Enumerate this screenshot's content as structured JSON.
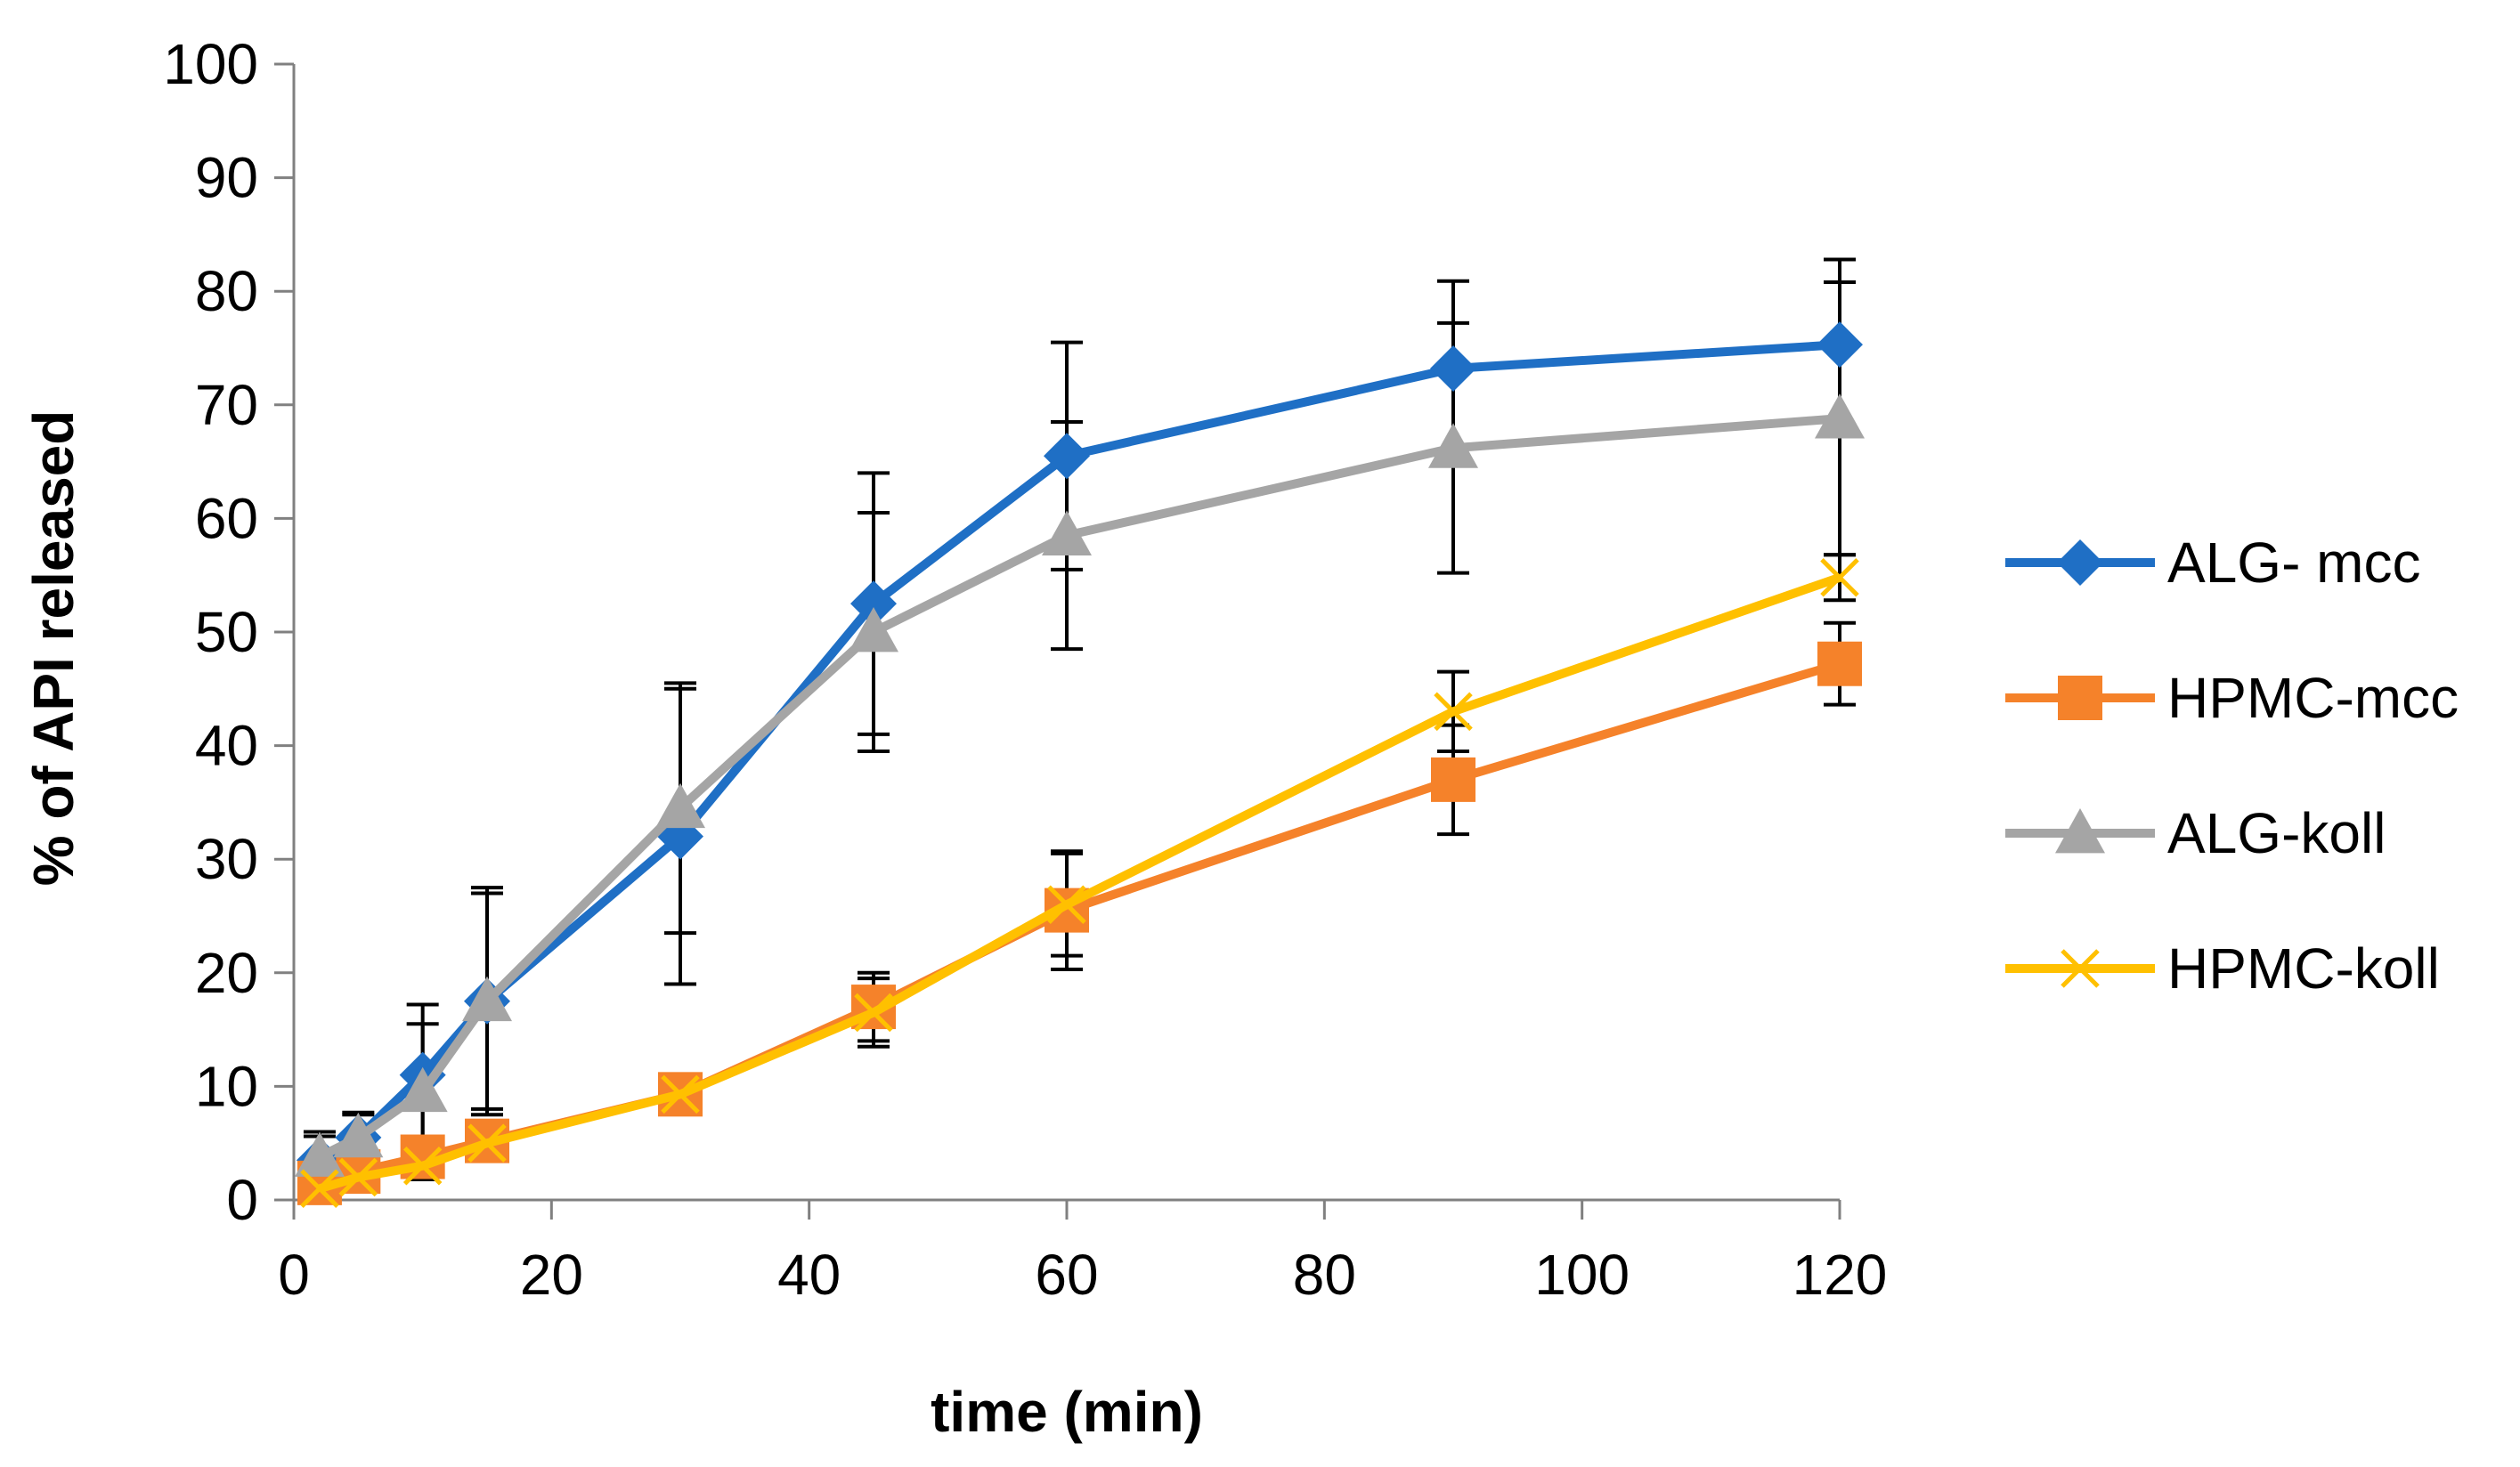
{
  "chart_data": {
    "type": "line",
    "title": "",
    "xlabel": "time (min)",
    "ylabel": "% of API released",
    "xlim": [
      0,
      120
    ],
    "ylim": [
      0,
      100
    ],
    "x_ticks": [
      0,
      20,
      40,
      60,
      80,
      100,
      120
    ],
    "y_ticks": [
      0,
      10,
      20,
      30,
      40,
      50,
      60,
      70,
      80,
      90,
      100
    ],
    "grid": false,
    "legend_position": "right",
    "x": [
      2,
      5,
      10,
      15,
      30,
      45,
      60,
      90,
      120
    ],
    "series": [
      {
        "name": "ALG- mcc",
        "color": "#1F6FC5",
        "marker": "diamond",
        "values": [
          3.5,
          5.5,
          11,
          17.5,
          32,
          52.5,
          65.5,
          73.2,
          75.3
        ],
        "errors": [
          2.5,
          2.2,
          6.2,
          9.5,
          13,
          11.5,
          10,
          7.7,
          7.5
        ]
      },
      {
        "name": "HPMC-mcc",
        "color": "#F5822A",
        "marker": "square",
        "values": [
          1.5,
          2.5,
          3.8,
          5.2,
          9.3,
          17,
          25.5,
          37,
          47.2
        ],
        "errors": [
          0.8,
          1,
          1.2,
          1.5,
          1.3,
          3,
          5.2,
          4.8,
          3.6
        ]
      },
      {
        "name": "ALG-koll",
        "color": "#A5A5A5",
        "marker": "triangle",
        "values": [
          3.8,
          5.5,
          9.5,
          17.5,
          34.5,
          50,
          58.5,
          66.2,
          68.8
        ],
        "errors": [
          1.8,
          2,
          6,
          10,
          11,
          10.5,
          10,
          11,
          12
        ]
      },
      {
        "name": "HPMC-koll",
        "color": "#FFC000",
        "marker": "x",
        "values": [
          1,
          2,
          3,
          5,
          9.3,
          16.5,
          26,
          43,
          54.8
        ],
        "errors": [
          0.8,
          1,
          1.2,
          1.5,
          1.3,
          3,
          4.5,
          3.5,
          2
        ]
      }
    ]
  }
}
